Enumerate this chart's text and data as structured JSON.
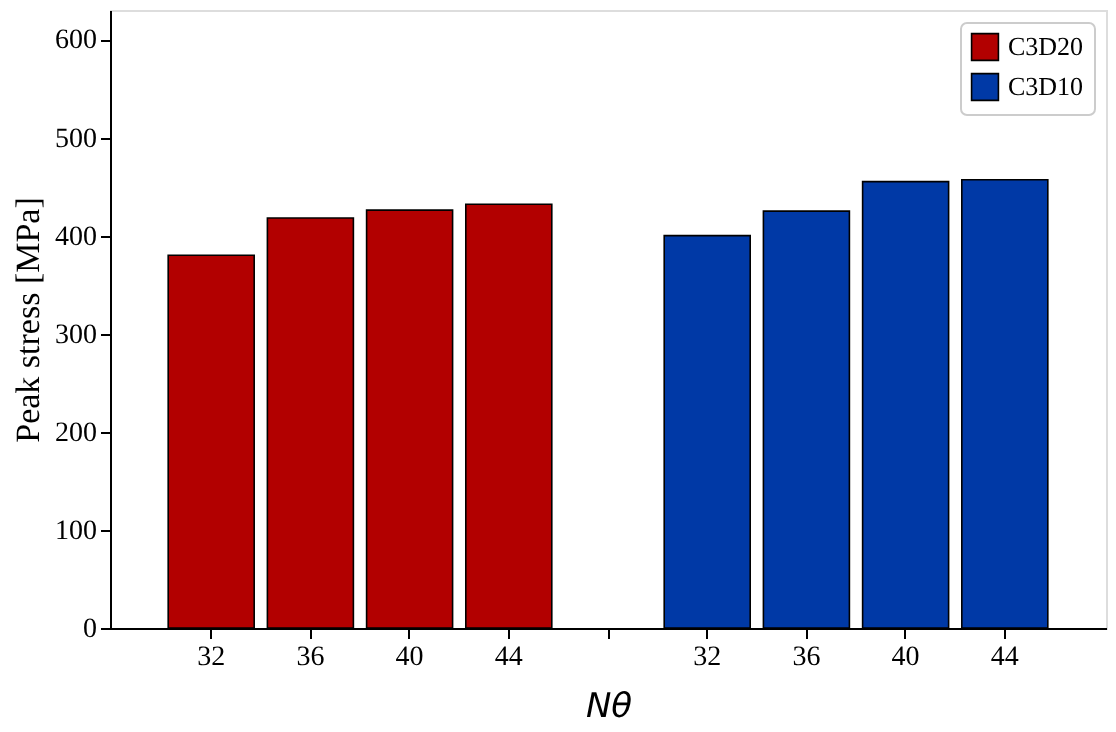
{
  "chart_data": {
    "type": "bar",
    "categories": [
      "32",
      "36",
      "40",
      "44",
      null,
      "32",
      "36",
      "40",
      "44"
    ],
    "series": [
      {
        "name": "C3D20",
        "color": "#b20000",
        "values": [
          380,
          418,
          426,
          432,
          null,
          null,
          null,
          null,
          null
        ]
      },
      {
        "name": "C3D10",
        "color": "#0039a6",
        "values": [
          null,
          null,
          null,
          null,
          null,
          400,
          425,
          455,
          457
        ]
      }
    ],
    "xlabel": "Nθ",
    "ylabel": "Peak stress [MPa]",
    "ylim": [
      0,
      630
    ],
    "yticks": [
      0,
      100,
      200,
      300,
      400,
      500,
      600
    ],
    "grid": false,
    "legend": "top right"
  }
}
